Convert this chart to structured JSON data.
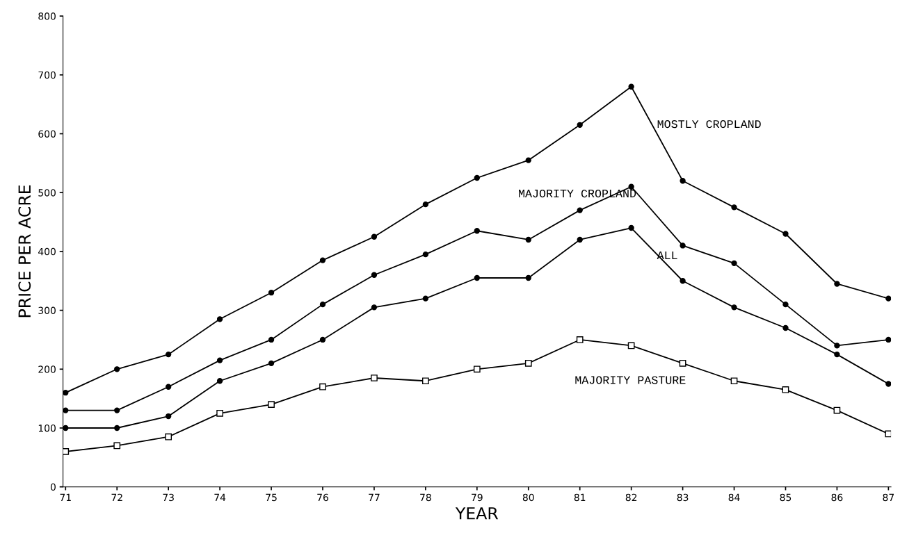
{
  "chart_data": {
    "type": "line",
    "xlabel": "YEAR",
    "ylabel": "PRICE PER ACRE",
    "categories": [
      "71",
      "72",
      "73",
      "74",
      "75",
      "76",
      "77",
      "78",
      "79",
      "80",
      "81",
      "82",
      "83",
      "84",
      "85",
      "86",
      "87"
    ],
    "series": [
      {
        "name": "MOSTLY CROPLAND",
        "color": "#000000",
        "marker": "circle",
        "values": [
          160,
          200,
          225,
          285,
          330,
          385,
          425,
          480,
          525,
          555,
          615,
          680,
          520,
          475,
          430,
          345,
          320
        ]
      },
      {
        "name": "MAJORITY CROPLAND",
        "color": "#000000",
        "marker": "circle",
        "values": [
          130,
          130,
          170,
          215,
          250,
          310,
          360,
          395,
          435,
          420,
          470,
          510,
          410,
          380,
          310,
          240,
          250
        ]
      },
      {
        "name": "ALL",
        "color": "#000000",
        "marker": "circle",
        "values": [
          100,
          100,
          120,
          180,
          210,
          250,
          305,
          320,
          355,
          355,
          420,
          440,
          350,
          305,
          270,
          225,
          175
        ]
      },
      {
        "name": "MAJORITY PASTURE",
        "color": "#000000",
        "marker": "square",
        "values": [
          60,
          70,
          85,
          125,
          140,
          170,
          185,
          180,
          200,
          210,
          250,
          240,
          210,
          180,
          165,
          130,
          90
        ]
      }
    ],
    "ylim": [
      0,
      800
    ],
    "yticks": [
      0,
      100,
      200,
      300,
      400,
      500,
      600,
      700,
      800
    ],
    "grid": false,
    "legend": false,
    "line_style": "solid"
  }
}
